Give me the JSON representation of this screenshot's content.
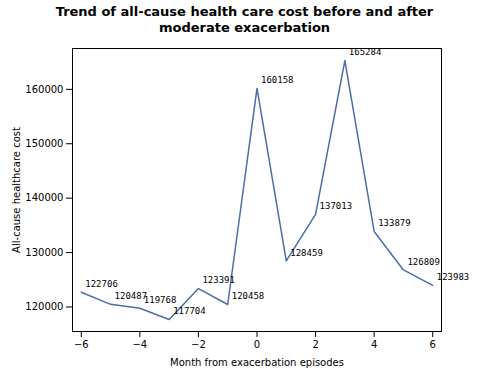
{
  "chart_data": {
    "type": "line",
    "title": "Trend of all-cause health care cost before and after moderate exacerbation",
    "x_label": "Month from exacerbation episodes",
    "y_label": "All-cause healthcare cost",
    "x": [
      -6,
      -5,
      -4,
      -3,
      -2,
      -1,
      0,
      1,
      2,
      3,
      4,
      5,
      6
    ],
    "values": [
      122706,
      120487,
      119768,
      117704,
      123391,
      120458,
      160158,
      128459,
      137013,
      165284,
      133879,
      126809,
      123983
    ],
    "color": "#4a6fa5",
    "xlim": [
      -6.3,
      6.3
    ],
    "xticks": [
      -6,
      -4,
      -2,
      0,
      2,
      4,
      6
    ],
    "ylim": [
      115500,
      167500
    ],
    "yticks": [
      120000,
      130000,
      140000,
      150000,
      160000
    ],
    "grid": false,
    "data_labels": true
  }
}
